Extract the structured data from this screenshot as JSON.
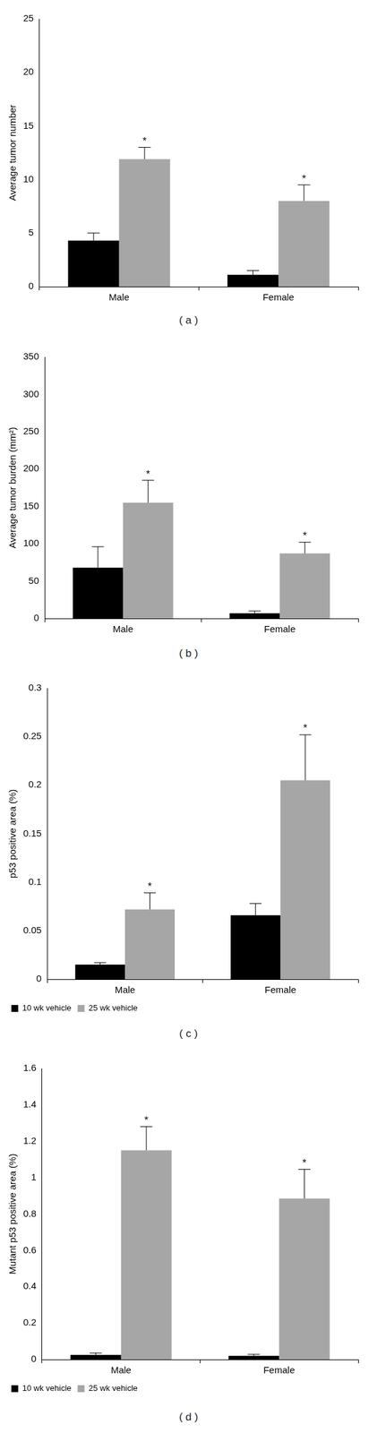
{
  "chart_data": [
    {
      "type": "bar",
      "caption": "( a )",
      "y_label": "Average tumor number",
      "categories": [
        "Male",
        "Female"
      ],
      "ylim": [
        0,
        25
      ],
      "yticks": [
        0,
        5,
        10,
        15,
        20,
        25
      ],
      "grid": false,
      "series": [
        {
          "name": "10 wk vehicle",
          "color": "#000000",
          "values": [
            4.3,
            1.1
          ],
          "errors": [
            0.7,
            0.4
          ]
        },
        {
          "name": "25 wk vehicle",
          "color": "#a6a6a6",
          "values": [
            11.9,
            8.0
          ],
          "errors": [
            1.1,
            1.5
          ],
          "significance": [
            "*",
            "*"
          ]
        }
      ]
    },
    {
      "type": "bar",
      "caption": "( b )",
      "y_label": "Average tumor burden (mm²)",
      "categories": [
        "Male",
        "Female"
      ],
      "ylim": [
        0,
        350
      ],
      "yticks": [
        0,
        50,
        100,
        150,
        200,
        250,
        300,
        350
      ],
      "grid": false,
      "series": [
        {
          "name": "10 wk vehicle",
          "color": "#000000",
          "values": [
            68,
            7
          ],
          "errors": [
            28,
            3
          ]
        },
        {
          "name": "25 wk vehicle",
          "color": "#a6a6a6",
          "values": [
            155,
            87
          ],
          "errors": [
            30,
            15
          ],
          "significance": [
            "*",
            "*"
          ]
        }
      ]
    },
    {
      "type": "bar",
      "caption": "( c )",
      "y_label": "p53 positive area (%)",
      "categories": [
        "Male",
        "Female"
      ],
      "ylim": [
        0,
        0.3
      ],
      "yticks": [
        0,
        0.05,
        0.1,
        0.15,
        0.2,
        0.25,
        0.3
      ],
      "grid": false,
      "legend": "bottom-left",
      "series": [
        {
          "name": "10 wk vehicle",
          "color": "#000000",
          "values": [
            0.015,
            0.066
          ],
          "errors": [
            0.002,
            0.012
          ]
        },
        {
          "name": "25 wk vehicle",
          "color": "#a6a6a6",
          "values": [
            0.072,
            0.205
          ],
          "errors": [
            0.017,
            0.047
          ],
          "significance": [
            "*",
            "*"
          ]
        }
      ]
    },
    {
      "type": "bar",
      "caption": "( d )",
      "y_label": "Mutant p53 positive area (%)",
      "categories": [
        "Male",
        "Female"
      ],
      "ylim": [
        0,
        1.6
      ],
      "yticks": [
        0,
        0.2,
        0.4,
        0.6,
        0.8,
        1,
        1.2,
        1.4,
        1.6
      ],
      "grid": false,
      "legend": "bottom-left",
      "series": [
        {
          "name": "10 wk vehicle",
          "color": "#000000",
          "values": [
            0.025,
            0.02
          ],
          "errors": [
            0.01,
            0.008
          ]
        },
        {
          "name": "25 wk vehicle",
          "color": "#a6a6a6",
          "values": [
            1.15,
            0.885
          ],
          "errors": [
            0.13,
            0.16
          ],
          "significance": [
            "*",
            "*"
          ]
        }
      ]
    }
  ]
}
